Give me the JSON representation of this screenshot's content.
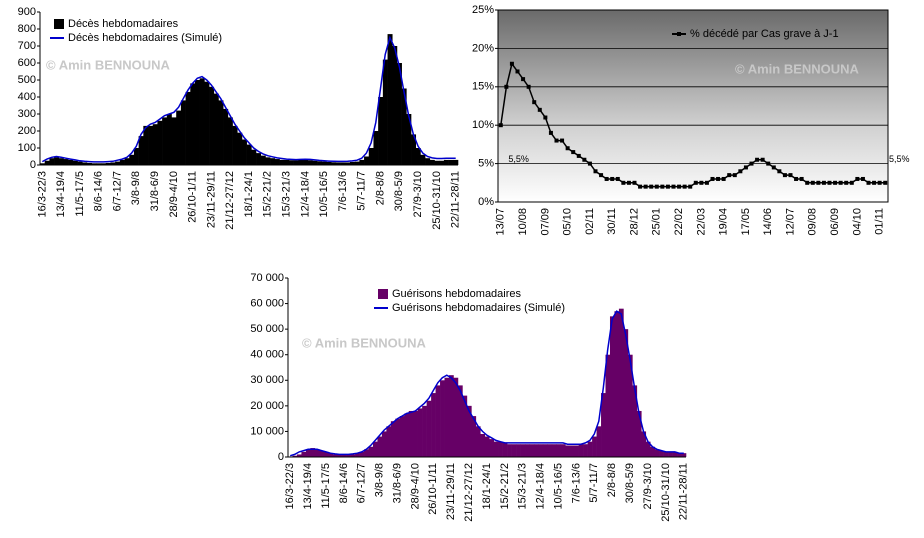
{
  "chart_data": [
    {
      "type": "bar",
      "categories": [
        "16/3-22/3",
        null,
        null,
        null,
        "13/4-19/4",
        null,
        null,
        null,
        "11/5-17/5",
        null,
        null,
        null,
        "8/6-14/6",
        null,
        null,
        null,
        "6/7-12/7",
        null,
        null,
        null,
        "3/8-9/8",
        null,
        null,
        null,
        "31/8-6/9",
        null,
        null,
        null,
        "28/9-4/10",
        null,
        null,
        null,
        "26/10-1/11",
        null,
        null,
        null,
        "23/11-29/11",
        null,
        null,
        null,
        "21/12-27/12",
        null,
        null,
        null,
        "18/1-24/1",
        null,
        null,
        null,
        "15/2-21/2",
        null,
        null,
        null,
        "15/3-21/3",
        null,
        null,
        null,
        "12/4-18/4",
        null,
        null,
        null,
        "10/5-16/5",
        null,
        null,
        null,
        "7/6-13/6",
        null,
        null,
        null,
        "5/7-11/7",
        null,
        null,
        null,
        "2/8-8/8",
        null,
        null,
        null,
        "30/8-5/9",
        null,
        null,
        null,
        "27/9-3/10",
        null,
        null,
        null,
        "25/10-31/10",
        null,
        null,
        null,
        "22/11-28/11"
      ],
      "series": [
        {
          "name": "Décès hebdomadaires",
          "type": "bar",
          "color": "#000000",
          "values": [
            10,
            25,
            40,
            45,
            40,
            35,
            30,
            25,
            20,
            15,
            12,
            10,
            10,
            10,
            12,
            15,
            20,
            30,
            40,
            60,
            100,
            170,
            230,
            230,
            240,
            260,
            280,
            300,
            280,
            320,
            380,
            430,
            480,
            500,
            510,
            490,
            460,
            420,
            380,
            330,
            280,
            230,
            190,
            150,
            120,
            90,
            70,
            55,
            45,
            40,
            35,
            30,
            30,
            28,
            28,
            30,
            30,
            28,
            25,
            22,
            20,
            18,
            16,
            15,
            15,
            15,
            18,
            20,
            30,
            50,
            100,
            200,
            400,
            620,
            770,
            700,
            600,
            450,
            300,
            180,
            100,
            60,
            40,
            30,
            25,
            25,
            30,
            30,
            30
          ]
        },
        {
          "name": "Décès hebdomadaires (Simulé)",
          "type": "line",
          "color": "#0000cc",
          "values": [
            20,
            35,
            45,
            50,
            45,
            40,
            35,
            30,
            25,
            22,
            20,
            18,
            18,
            18,
            20,
            22,
            28,
            35,
            45,
            70,
            110,
            180,
            220,
            240,
            250,
            270,
            290,
            300,
            310,
            340,
            390,
            440,
            480,
            510,
            520,
            500,
            470,
            430,
            390,
            340,
            290,
            240,
            200,
            160,
            130,
            100,
            80,
            65,
            55,
            48,
            42,
            38,
            35,
            33,
            32,
            33,
            34,
            33,
            30,
            27,
            25,
            23,
            22,
            21,
            21,
            22,
            24,
            28,
            40,
            70,
            130,
            250,
            450,
            650,
            750,
            690,
            580,
            430,
            290,
            180,
            110,
            70,
            50,
            42,
            38,
            38,
            40,
            40,
            40
          ]
        }
      ],
      "ylim": [
        0,
        900
      ],
      "yticks": [
        0,
        100,
        200,
        300,
        400,
        500,
        600,
        700,
        800,
        900
      ],
      "grid": false,
      "watermark": "© Amin BENNOUNA"
    },
    {
      "type": "line",
      "categories": [
        "13/07",
        null,
        null,
        null,
        "10/08",
        null,
        null,
        null,
        "07/09",
        null,
        null,
        null,
        "05/10",
        null,
        null,
        null,
        "02/11",
        null,
        null,
        null,
        "30/11",
        null,
        null,
        null,
        "28/12",
        null,
        null,
        null,
        "25/01",
        null,
        null,
        null,
        "22/02",
        null,
        null,
        null,
        "22/03",
        null,
        null,
        null,
        "19/04",
        null,
        null,
        null,
        "17/05",
        null,
        null,
        null,
        "14/06",
        null,
        null,
        null,
        "12/07",
        null,
        null,
        null,
        "09/08",
        null,
        null,
        null,
        "06/09",
        null,
        null,
        null,
        "04/10",
        null,
        null,
        null,
        "01/11",
        null
      ],
      "series": [
        {
          "name": "% décédé par Cas grave à J-1",
          "type": "line",
          "color": "#000000",
          "marker": "square",
          "values": [
            10,
            15,
            18,
            17,
            16,
            15,
            13,
            12,
            11,
            9,
            8,
            8,
            7,
            6.5,
            6,
            5.5,
            5,
            4,
            3.5,
            3,
            3,
            3,
            2.5,
            2.5,
            2.5,
            2,
            2,
            2,
            2,
            2,
            2,
            2,
            2,
            2,
            2,
            2.5,
            2.5,
            2.5,
            3,
            3,
            3,
            3.5,
            3.5,
            4,
            4.5,
            5,
            5.5,
            5.5,
            5,
            4.5,
            4,
            3.5,
            3.5,
            3,
            3,
            2.5,
            2.5,
            2.5,
            2.5,
            2.5,
            2.5,
            2.5,
            2.5,
            2.5,
            3,
            3,
            2.5,
            2.5,
            2.5,
            2.5
          ]
        }
      ],
      "ylim": [
        0,
        25
      ],
      "yticks": [
        {
          "value": 0,
          "label": "0%"
        },
        {
          "value": 5,
          "label": "5%"
        },
        {
          "value": 10,
          "label": "10%"
        },
        {
          "value": 15,
          "label": "15%"
        },
        {
          "value": 20,
          "label": "20%"
        },
        {
          "value": 25,
          "label": "25%"
        }
      ],
      "grid": true,
      "annotations": [
        "5,5%",
        "5,5%"
      ],
      "watermark": "© Amin BENNOUNA"
    },
    {
      "type": "bar",
      "categories": [
        "16/3-22/3",
        null,
        null,
        null,
        "13/4-19/4",
        null,
        null,
        null,
        "11/5-17/5",
        null,
        null,
        null,
        "8/6-14/6",
        null,
        null,
        null,
        "6/7-12/7",
        null,
        null,
        null,
        "3/8-9/8",
        null,
        null,
        null,
        "31/8-6/9",
        null,
        null,
        null,
        "28/9-4/10",
        null,
        null,
        null,
        "26/10-1/11",
        null,
        null,
        null,
        "23/11-29/11",
        null,
        null,
        null,
        "21/12-27/12",
        null,
        null,
        null,
        "18/1-24/1",
        null,
        null,
        null,
        "15/2-21/2",
        null,
        null,
        null,
        "15/3-21/3",
        null,
        null,
        null,
        "12/4-18/4",
        null,
        null,
        null,
        "10/5-16/5",
        null,
        null,
        null,
        "7/6-13/6",
        null,
        null,
        null,
        "5/7-11/7",
        null,
        null,
        null,
        "2/8-8/8",
        null,
        null,
        null,
        "30/8-5/9",
        null,
        null,
        null,
        "27/9-3/10",
        null,
        null,
        null,
        "25/10-31/10",
        null,
        null,
        null,
        "22/11-28/11"
      ],
      "series": [
        {
          "name": "Guérisons hebdomadaires",
          "type": "bar",
          "color": "#660066",
          "values": [
            200,
            500,
            1000,
            2000,
            3000,
            3500,
            3000,
            2500,
            2000,
            1500,
            1000,
            1000,
            1000,
            1000,
            1000,
            1500,
            2000,
            3000,
            4000,
            6000,
            8000,
            10000,
            12000,
            14000,
            15000,
            16000,
            17000,
            18000,
            18000,
            19000,
            20000,
            22000,
            25000,
            28000,
            30000,
            31000,
            32000,
            31000,
            28000,
            24000,
            20000,
            16000,
            12000,
            9000,
            8000,
            7000,
            6000,
            6000,
            5500,
            5000,
            5000,
            5000,
            5000,
            5000,
            5000,
            5000,
            5000,
            5000,
            5000,
            5000,
            5000,
            5000,
            4500,
            4500,
            4500,
            5000,
            5000,
            6000,
            8000,
            12000,
            25000,
            40000,
            55000,
            57000,
            58000,
            50000,
            40000,
            28000,
            18000,
            10000,
            6000,
            4000,
            3000,
            2500,
            2000,
            2000,
            2000,
            1500,
            1500
          ]
        },
        {
          "name": "Guérisons hebdomadaires (Simulé)",
          "type": "line",
          "color": "#0000cc",
          "values": [
            500,
            1000,
            2000,
            2500,
            3000,
            3000,
            3000,
            2500,
            2000,
            1500,
            1200,
            1000,
            1000,
            1000,
            1200,
            1500,
            2000,
            3000,
            4500,
            6500,
            8500,
            10500,
            12000,
            13500,
            15000,
            16000,
            17000,
            17500,
            18000,
            19500,
            21000,
            23000,
            26000,
            29000,
            31000,
            32000,
            31000,
            29000,
            26000,
            22000,
            18000,
            15000,
            12000,
            10000,
            8500,
            7500,
            6500,
            6000,
            5500,
            5500,
            5500,
            5500,
            5500,
            5500,
            5500,
            5500,
            5500,
            5500,
            5500,
            5500,
            5500,
            5500,
            5000,
            5000,
            5000,
            5000,
            5500,
            6500,
            9000,
            14000,
            27000,
            42000,
            54000,
            57000,
            56000,
            48000,
            38000,
            27000,
            17000,
            10000,
            6000,
            4000,
            3000,
            2500,
            2000,
            2000,
            2000,
            1500,
            1500
          ]
        }
      ],
      "ylim": [
        0,
        70000
      ],
      "yticks": [
        0,
        {
          "value": 10000,
          "label": "10 000"
        },
        {
          "value": 20000,
          "label": "20 000"
        },
        {
          "value": 30000,
          "label": "30 000"
        },
        {
          "value": 40000,
          "label": "40 000"
        },
        {
          "value": 50000,
          "label": "50 000"
        },
        {
          "value": 60000,
          "label": "60 000"
        },
        {
          "value": 70000,
          "label": "70 000"
        }
      ],
      "grid": false,
      "watermark": "© Amin BENNOUNA"
    }
  ]
}
